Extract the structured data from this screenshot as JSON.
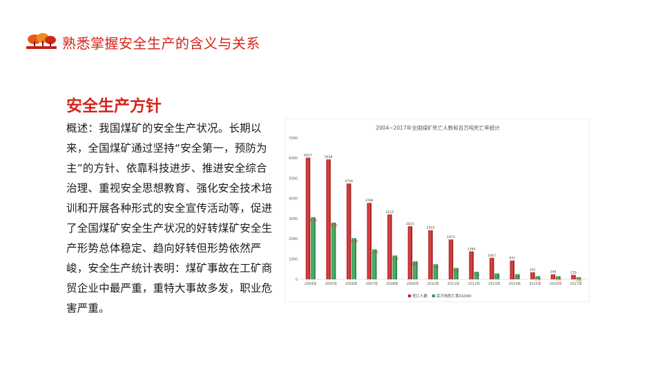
{
  "header": {
    "title": "熟悉掌握安全生产的含义与关系",
    "logo_icon": "red-tree-landscape-logo",
    "accent_color": "#d6231b"
  },
  "section": {
    "title": "安全生产方针",
    "body": "概述：我国煤矿的安全生产状况。长期以来，全国煤矿通过坚持“安全第一，预防为主”的方针、依靠科技进步、推进安全综合治理、重视安全思想教育、强化安全技术培训和开展各种形式的安全宣传活动等，促进了全国煤矿安全生产状况的好转煤矿安全生产形势总体稳定、趋向好转但形势依然严峻，安全生产统计表明：煤矿事故在工矿商贸企业中最严重，重特大事故多发，职业危害严重。"
  },
  "chart_data": {
    "type": "bar",
    "title": "2004~2017年全国煤矿死亡人数和百万吨死亡率统计",
    "categories": [
      "2004年",
      "2005年",
      "2006年",
      "2007年",
      "2008年",
      "2009年",
      "2010年",
      "2011年",
      "2012年",
      "2013年",
      "2014年",
      "2015年",
      "2016年",
      "2017年"
    ],
    "series": [
      {
        "name": "死亡人数",
        "color": "#b22222",
        "values": [
          6027,
          5938,
          4746,
          3786,
          3215,
          2631,
          2433,
          1973,
          1384,
          1067,
          931,
          352,
          249,
          219
        ],
        "labels": [
          "6027",
          "5938",
          "4746",
          "3786",
          "3215",
          "2631",
          "2433",
          "1973",
          "1384",
          "1067",
          "931",
          "352",
          "249",
          "219"
        ]
      },
      {
        "name": "百万吨死亡率X1000",
        "color": "#2e8b4a",
        "values": [
          3080,
          2810,
          2040,
          1485,
          1182,
          892,
          749,
          564,
          374,
          293,
          257,
          159,
          156,
          106
        ],
        "labels": [
          "3080",
          "2810",
          "2040",
          "1485",
          "1182",
          "892",
          "749",
          "564",
          "374",
          "293",
          "257",
          "159",
          "156",
          "106"
        ]
      }
    ],
    "yticks": [
      "0",
      "1000",
      "2000",
      "3000",
      "4000",
      "5000",
      "6000",
      "7000"
    ],
    "ylim": [
      0,
      7000
    ],
    "grid": false,
    "legend_position": "bottom"
  }
}
